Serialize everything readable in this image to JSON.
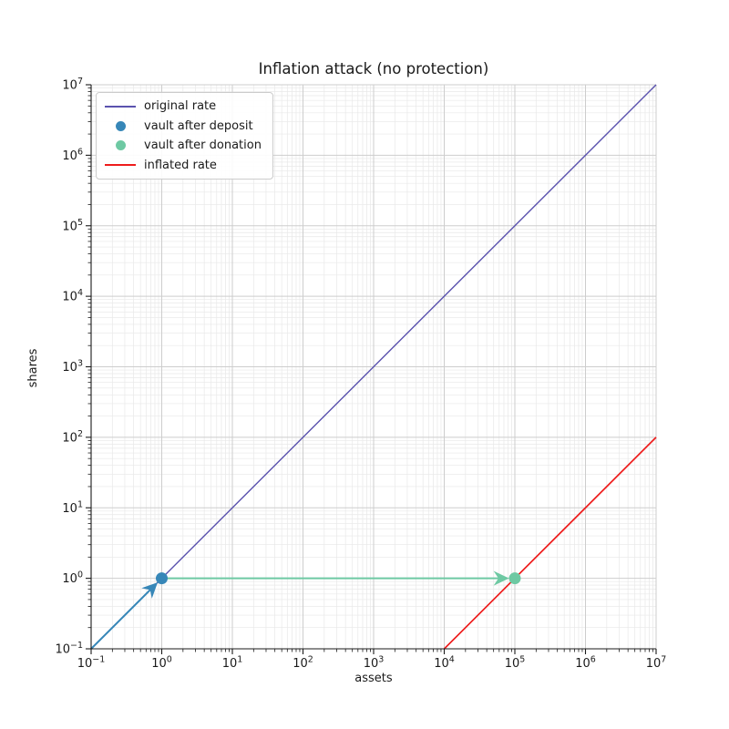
{
  "chart_data": {
    "type": "line",
    "title": "Inflation attack (no protection)",
    "xlabel": "assets",
    "ylabel": "shares",
    "xscale": "log",
    "yscale": "log",
    "xlim": [
      0.1,
      10000000
    ],
    "ylim": [
      0.1,
      10000000
    ],
    "x_tick_exponents": [
      -1,
      0,
      1,
      2,
      3,
      4,
      5,
      6,
      7
    ],
    "y_tick_exponents": [
      -1,
      0,
      1,
      2,
      3,
      4,
      5,
      6,
      7
    ],
    "grid": {
      "major": true,
      "minor": true,
      "major_color": "#cdcdcd",
      "minor_color": "#e8e8e8"
    },
    "series": [
      {
        "name": "original rate",
        "color": "#5a52ae",
        "width": 1.4,
        "points": [
          [
            0.1,
            0.1
          ],
          [
            10000000,
            10000000
          ]
        ]
      },
      {
        "name": "inflated rate",
        "color": "#ee1c1c",
        "width": 1.7,
        "points": [
          [
            10000,
            0.1
          ],
          [
            10000000,
            100
          ]
        ]
      }
    ],
    "markers": [
      {
        "name": "vault after deposit",
        "color": "#3787b8",
        "x": 1,
        "y": 1
      },
      {
        "name": "vault after donation",
        "color": "#6ec9a3",
        "x": 100000,
        "y": 1
      }
    ],
    "arrows": [
      {
        "name": "deposit-arrow",
        "color": "#3787b8",
        "from": [
          0.1,
          0.1
        ],
        "to": [
          1,
          1
        ]
      },
      {
        "name": "donation-arrow",
        "color": "#6ec9a3",
        "from": [
          1,
          1
        ],
        "to": [
          100000,
          1
        ]
      }
    ],
    "legend": {
      "position": "upper left",
      "entries": [
        {
          "label": "original rate",
          "swatch": "line",
          "color": "#5a52ae"
        },
        {
          "label": "vault after deposit",
          "swatch": "dot",
          "color": "#3787b8"
        },
        {
          "label": "vault after donation",
          "swatch": "dot",
          "color": "#6ec9a3"
        },
        {
          "label": "inflated rate",
          "swatch": "line",
          "color": "#ee1c1c"
        }
      ]
    }
  }
}
